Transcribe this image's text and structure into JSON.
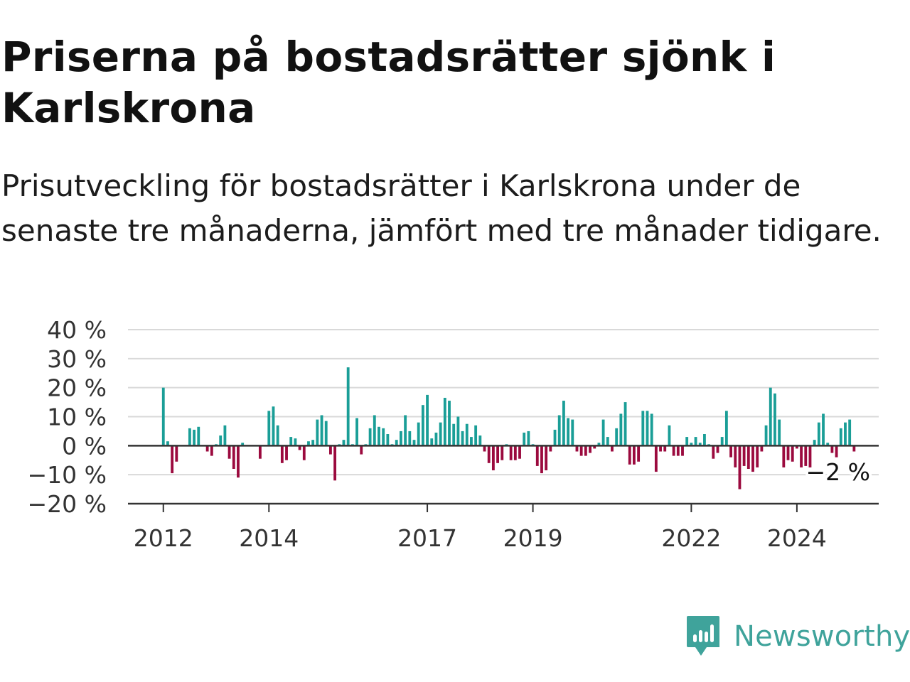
{
  "title": "Priserna på bostadsrätter sjönk i Karlskrona",
  "subtitle": "Prisutveckling för bostadsrätter i Karlskrona under de senaste tre månaderna, jämfört med tre månader tidigare.",
  "brand": {
    "name": "Newsworthy",
    "icon": "newsworthy-logo-icon",
    "color": "#3fa39b"
  },
  "colors": {
    "positive": "#1a9e97",
    "negative": "#9b0a3e",
    "grid": "#d9d9d9",
    "axis": "#333333"
  },
  "chart_data": {
    "type": "bar",
    "y_ticks": [
      "40 %",
      "30 %",
      "20 %",
      "10 %",
      "0 %",
      "−10 %",
      "−20 %"
    ],
    "y_tick_values": [
      40,
      30,
      20,
      10,
      0,
      -10,
      -20
    ],
    "ylim": [
      -20,
      40
    ],
    "x_ticks": [
      "2012",
      "2014",
      "2017",
      "2019",
      "2022",
      "2024"
    ],
    "x_tick_values": [
      2012,
      2014,
      2017,
      2019,
      2022,
      2024
    ],
    "xlim": [
      2011.33,
      2025.55
    ],
    "start": "2012-01",
    "grid": true,
    "last_label": "−2 %",
    "values": [
      20,
      1.5,
      -9.5,
      -5.5,
      0,
      0,
      6,
      5.5,
      6.5,
      0,
      -2,
      -3.5,
      0.5,
      3.5,
      7,
      -4.5,
      -8,
      -11,
      1,
      0,
      0,
      0,
      -4.5,
      0,
      12,
      13.5,
      7,
      -6,
      -5,
      3,
      2.5,
      -1.5,
      -5,
      1.5,
      2,
      9,
      10.5,
      8.5,
      -3,
      -12,
      0.5,
      2,
      27,
      0.5,
      9.5,
      -3,
      0.5,
      6,
      10.5,
      6.5,
      6,
      4,
      0.5,
      2,
      5,
      10.5,
      5,
      2,
      8,
      14,
      17.5,
      2.5,
      4.5,
      8,
      16.5,
      15.5,
      7.5,
      10,
      5,
      7.5,
      3,
      7,
      3.5,
      -2,
      -6,
      -8.5,
      -6,
      -5,
      0.5,
      -5,
      -5,
      -4.5,
      4.5,
      5,
      0.5,
      -7,
      -9.5,
      -8.5,
      -2,
      5.5,
      10.5,
      15.5,
      9.5,
      9,
      -2,
      -3.5,
      -3.5,
      -2.5,
      -1,
      1,
      9,
      3,
      -2,
      6,
      11,
      15,
      -6.5,
      -6.5,
      -5.5,
      12,
      12,
      11,
      -9,
      -2,
      -2,
      7,
      -3.5,
      -3.5,
      -3.5,
      3,
      1,
      3,
      1,
      4,
      0.5,
      -4.5,
      -2.5,
      3,
      12,
      -4,
      -7.5,
      -15,
      -7,
      -8,
      -9,
      -7.5,
      -2,
      7,
      20,
      18,
      9,
      -7.5,
      -5,
      -5.5,
      -1,
      -7.5,
      -7,
      -7.5,
      2,
      8,
      11,
      1,
      -2.5,
      -4,
      6,
      8,
      9,
      -2
    ]
  }
}
